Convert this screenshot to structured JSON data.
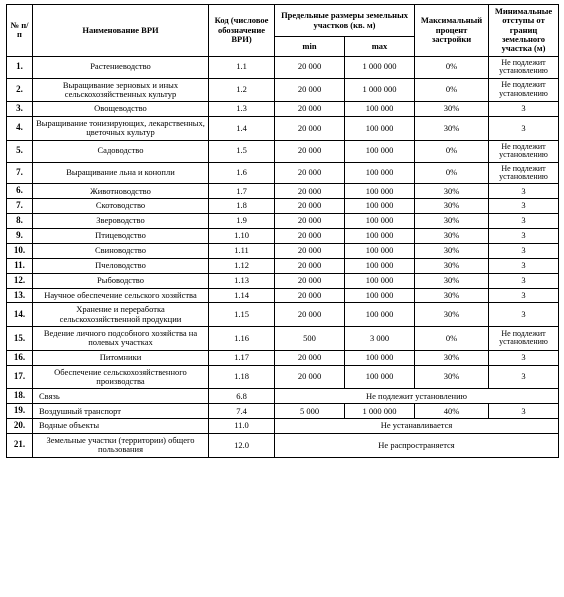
{
  "header": {
    "col_num": "№ п/п",
    "col_name": "Наименование ВРИ",
    "col_code": "Код (числовое обозначение ВРИ)",
    "col_size_group": "Предельные размеры земельных участков (кв. м)",
    "col_min": "min",
    "col_max": "max",
    "col_percent": "Максимальный процент застройки",
    "col_setback": "Минимальные отступы от границ земельного участка (м)"
  },
  "notes": {
    "not_subject": "Не подлежит установлению",
    "not_set": "Не устанавливается",
    "not_apply": "Не распространяется"
  },
  "rows": [
    {
      "n": "1.",
      "name": "Растениеводство",
      "code": "1.1",
      "min": "20 000",
      "max": "1 000 000",
      "pct": "0%",
      "setb": "note"
    },
    {
      "n": "2.",
      "name": "Выращивание зерновых и иных сельскохозяйственных культур",
      "code": "1.2",
      "min": "20 000",
      "max": "1 000 000",
      "pct": "0%",
      "setb": "note"
    },
    {
      "n": "3.",
      "name": "Овощеводство",
      "code": "1.3",
      "min": "20 000",
      "max": "100 000",
      "pct": "30%",
      "setb": "3"
    },
    {
      "n": "4.",
      "name": "Выращивание тонизирующих, лекарственных, цветочных культур",
      "code": "1.4",
      "min": "20 000",
      "max": "100 000",
      "pct": "30%",
      "setb": "3"
    },
    {
      "n": "5.",
      "name": "Садоводство",
      "code": "1.5",
      "min": "20 000",
      "max": "100 000",
      "pct": "0%",
      "setb": "note"
    },
    {
      "n": "7.",
      "name": "Выращивание льна и конопли",
      "code": "1.6",
      "min": "20 000",
      "max": "100 000",
      "pct": "0%",
      "setb": "note"
    },
    {
      "n": "6.",
      "name": "Животноводство",
      "code": "1.7",
      "min": "20 000",
      "max": "100 000",
      "pct": "30%",
      "setb": "3"
    },
    {
      "n": "7.",
      "name": "Скотоводство",
      "code": "1.8",
      "min": "20 000",
      "max": "100 000",
      "pct": "30%",
      "setb": "3"
    },
    {
      "n": "8.",
      "name": "Звероводство",
      "code": "1.9",
      "min": "20 000",
      "max": "100 000",
      "pct": "30%",
      "setb": "3"
    },
    {
      "n": "9.",
      "name": "Птицеводство",
      "code": "1.10",
      "min": "20 000",
      "max": "100 000",
      "pct": "30%",
      "setb": "3"
    },
    {
      "n": "10.",
      "name": "Свиноводство",
      "code": "1.11",
      "min": "20 000",
      "max": "100 000",
      "pct": "30%",
      "setb": "3"
    },
    {
      "n": "11.",
      "name": "Пчеловодство",
      "code": "1.12",
      "min": "20 000",
      "max": "100 000",
      "pct": "30%",
      "setb": "3"
    },
    {
      "n": "12.",
      "name": "Рыбоводство",
      "code": "1.13",
      "min": "20 000",
      "max": "100 000",
      "pct": "30%",
      "setb": "3"
    },
    {
      "n": "13.",
      "name": "Научное обеспечение сельского хозяйства",
      "code": "1.14",
      "min": "20 000",
      "max": "100 000",
      "pct": "30%",
      "setb": "3"
    },
    {
      "n": "14.",
      "name": "Хранение и переработка сельскохозяйственной продукции",
      "code": "1.15",
      "min": "20 000",
      "max": "100 000",
      "pct": "30%",
      "setb": "3"
    },
    {
      "n": "15.",
      "name": "Ведение личного подсобного хозяйства на полевых участках",
      "code": "1.16",
      "min": "500",
      "max": "3 000",
      "pct": "0%",
      "setb": "note"
    },
    {
      "n": "16.",
      "name": "Питомники",
      "code": "1.17",
      "min": "20 000",
      "max": "100 000",
      "pct": "30%",
      "setb": "3"
    },
    {
      "n": "17.",
      "name": "Обеспечение сельскохозяйственного производства",
      "code": "1.18",
      "min": "20 000",
      "max": "100 000",
      "pct": "30%",
      "setb": "3"
    },
    {
      "n": "18.",
      "name": "Связь",
      "name_align": "left",
      "code": "6.8",
      "span": "not_subject"
    },
    {
      "n": "19.",
      "name": "Воздушный транспорт",
      "name_align": "left",
      "code": "7.4",
      "min": "5 000",
      "max": "1 000 000",
      "pct": "40%",
      "setb": "3"
    },
    {
      "n": "20.",
      "name": "Водные объекты",
      "name_align": "left",
      "code": "11.0",
      "span": "not_set"
    },
    {
      "n": "21.",
      "name": "Земельные участки (территории) общего пользования",
      "code": "12.0",
      "span": "not_apply"
    }
  ]
}
